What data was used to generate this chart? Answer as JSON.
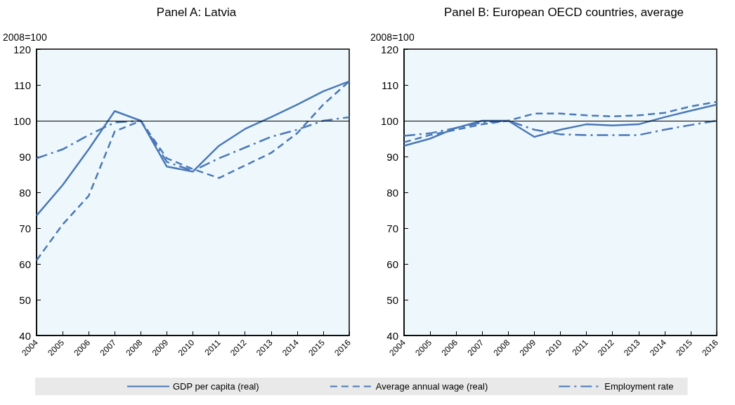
{
  "chart_data": [
    {
      "type": "line",
      "title": "Panel A: Latvia",
      "ylabel": "2008=100",
      "categories": [
        "2004",
        "2005",
        "2006",
        "2007",
        "2008",
        "2009",
        "2010",
        "2011",
        "2012",
        "2013",
        "2014",
        "2015",
        "2016"
      ],
      "ylim": [
        40,
        120
      ],
      "yticks": [
        40,
        50,
        60,
        70,
        80,
        90,
        100,
        110,
        120
      ],
      "grid": false,
      "marker": "none",
      "legend": "bottom",
      "ref_lines": [
        {
          "axis": "y",
          "value": 100,
          "color": "#000000"
        }
      ],
      "series": [
        {
          "name": "GDP per capita (real)",
          "color": "#4a78b8",
          "line_style": "solid",
          "values": [
            73.5,
            82,
            92,
            102.7,
            100,
            87.2,
            85.8,
            93,
            97.7,
            101,
            104.5,
            108.2,
            111
          ]
        },
        {
          "name": "Average annual wage (real)",
          "color": "#4a78b8",
          "line_style": "dashed",
          "values": [
            61,
            71,
            79,
            97,
            100,
            89.5,
            86.5,
            84,
            87.5,
            91,
            96.5,
            104.5,
            111
          ]
        },
        {
          "name": "Employment rate",
          "color": "#4a78b8",
          "line_style": "dashdot",
          "values": [
            89.5,
            92,
            96,
            99.5,
            100,
            88.5,
            86,
            89.5,
            92.5,
            95.5,
            97.5,
            100,
            101
          ]
        }
      ]
    },
    {
      "type": "line",
      "title": "Panel B: European OECD countries, average",
      "ylabel": "2008=100",
      "categories": [
        "2004",
        "2005",
        "2006",
        "2007",
        "2008",
        "2009",
        "2010",
        "2011",
        "2012",
        "2013",
        "2014",
        "2015",
        "2016"
      ],
      "ylim": [
        40,
        120
      ],
      "yticks": [
        40,
        50,
        60,
        70,
        80,
        90,
        100,
        110,
        120
      ],
      "grid": false,
      "marker": "none",
      "legend": false,
      "ref_lines": [
        {
          "axis": "y",
          "value": 100,
          "color": "#000000"
        }
      ],
      "series": [
        {
          "color": "#4a78b8",
          "line_style": "solid",
          "values": [
            93,
            95,
            98,
            100,
            100,
            95.5,
            97.5,
            99,
            98.7,
            99,
            101,
            102.8,
            104.5
          ]
        },
        {
          "color": "#4a78b8",
          "line_style": "dashed",
          "values": [
            94,
            96,
            97.5,
            99,
            100,
            102,
            102,
            101.5,
            101.2,
            101.5,
            102.2,
            104,
            105.3
          ]
        },
        {
          "color": "#4a78b8",
          "line_style": "dashdot",
          "values": [
            95.8,
            96.5,
            98,
            99.5,
            100,
            97.5,
            96.2,
            96,
            96,
            96,
            97.5,
            98.8,
            100
          ]
        }
      ]
    }
  ]
}
